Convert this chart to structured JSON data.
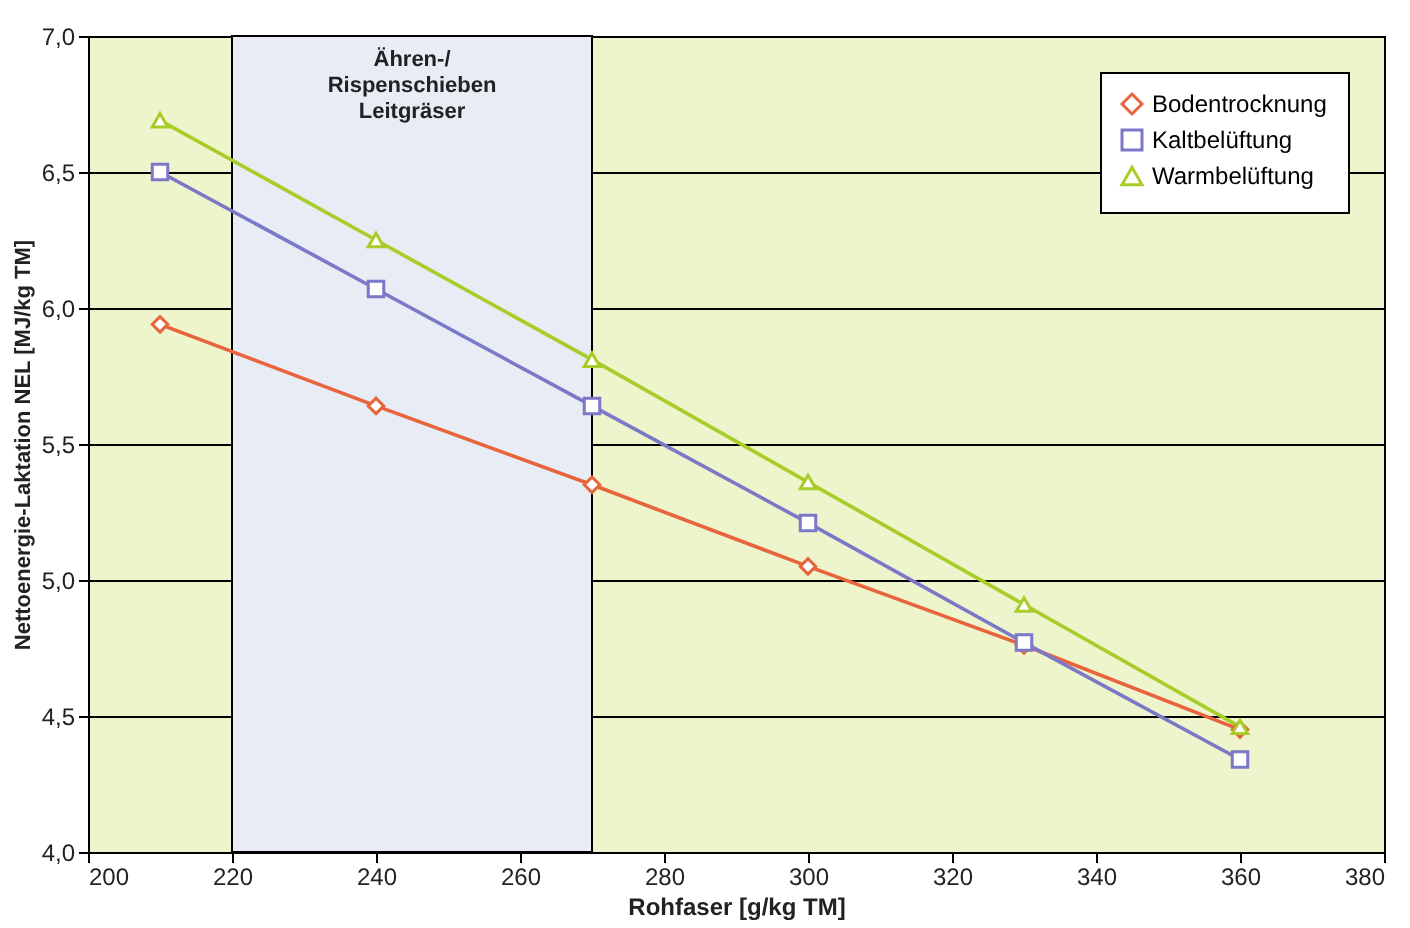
{
  "chart_data": {
    "type": "line",
    "xlabel": "Rohfaser [g/kg TM]",
    "ylabel": "Nettoenergie-Laktation NEL [MJ/kg TM]",
    "x": [
      210,
      240,
      270,
      300,
      330,
      360
    ],
    "series": [
      {
        "name": "Bodentrocknung",
        "color": "#e8643c",
        "marker": "diamond",
        "values": [
          5.94,
          5.64,
          5.35,
          5.05,
          4.76,
          4.45
        ]
      },
      {
        "name": "Kaltbelüftung",
        "color": "#7b78c8",
        "marker": "square",
        "values": [
          6.5,
          6.07,
          5.64,
          5.21,
          4.77,
          4.34
        ]
      },
      {
        "name": "Warmbelüftung",
        "color": "#a8cc28",
        "marker": "triangle",
        "values": [
          6.69,
          6.25,
          5.81,
          5.36,
          4.91,
          4.46
        ]
      }
    ],
    "xlim": [
      200,
      380
    ],
    "xticks": [
      200,
      220,
      240,
      260,
      280,
      300,
      320,
      340,
      360,
      380
    ],
    "ylim": [
      4.0,
      7.0
    ],
    "yticks": [
      {
        "value": 4.0,
        "label": "4,0"
      },
      {
        "value": 4.5,
        "label": "4,5"
      },
      {
        "value": 5.0,
        "label": "5,0"
      },
      {
        "value": 5.5,
        "label": "5,5"
      },
      {
        "value": 6.0,
        "label": "6,0"
      },
      {
        "value": 6.5,
        "label": "6,5"
      },
      {
        "value": 7.0,
        "label": "7,0"
      }
    ],
    "bands": [
      {
        "axis": "x",
        "from": 220,
        "to": 270,
        "label": "Ähren-/\nRispenschieben\nLeitgräser",
        "color": "#e8ecf4"
      }
    ],
    "grid": "y",
    "legend": "top right",
    "line_style": "solid"
  }
}
